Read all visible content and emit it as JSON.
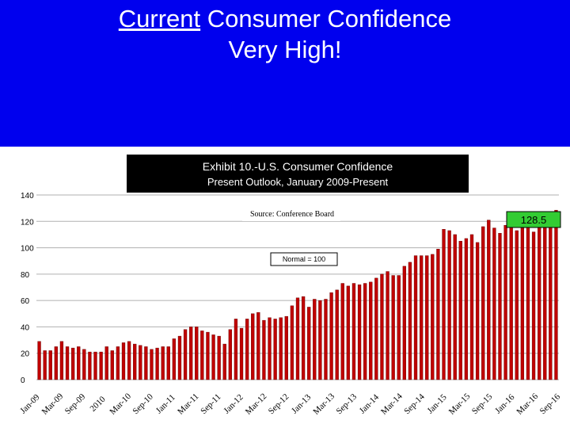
{
  "slide": {
    "title_underlined": "Current",
    "title_rest": " Consumer Confidence",
    "title_line2": "Very High!"
  },
  "chart_data": {
    "type": "bar",
    "title": "Exhibit 10.-U.S. Consumer Confidence",
    "subtitle": "Present Outlook, January 2009-Present",
    "source": "Source:  Conference Board",
    "annotation_normal": "Normal = 100",
    "callout_value": "128.5",
    "ylim": [
      0,
      140
    ],
    "yticks": [
      0,
      20,
      40,
      60,
      80,
      100,
      120,
      140
    ],
    "xtick_labels": [
      "Jan-09",
      "Mar-09",
      "Sep-09",
      "2010",
      "Mar-10",
      "Sep-10",
      "Jan-11",
      "Mar-11",
      "Sep-11",
      "Jan-12",
      "Mar-12",
      "Sep-12",
      "Jan-13",
      "Mar-13",
      "Sep-13",
      "Jan-14",
      "Mar-14",
      "Sep-14",
      "Jan-15",
      "Mar-15",
      "Sep-15",
      "Jan-16",
      "Mar-16",
      "Sep-16"
    ],
    "bar_color": "#c00000",
    "values": [
      29,
      22,
      22,
      25,
      29,
      25,
      24,
      25,
      23,
      21,
      21,
      21,
      25,
      22,
      25,
      28,
      29,
      27,
      26,
      25,
      23,
      24,
      25,
      25,
      31,
      33,
      38,
      40,
      40,
      37,
      36,
      34,
      33,
      27,
      38,
      46,
      39,
      46,
      50,
      51,
      45,
      47,
      46,
      47,
      48,
      56,
      62,
      63,
      55,
      61,
      60,
      61,
      66,
      68,
      73,
      71,
      73,
      72,
      73,
      74,
      77,
      80,
      82,
      79,
      79,
      86,
      89,
      94,
      94,
      94,
      95,
      99,
      114,
      113,
      110,
      105,
      107,
      110,
      104,
      116,
      121,
      115,
      111,
      117,
      117,
      113,
      115,
      116,
      112,
      116,
      119,
      125,
      128.5
    ]
  }
}
